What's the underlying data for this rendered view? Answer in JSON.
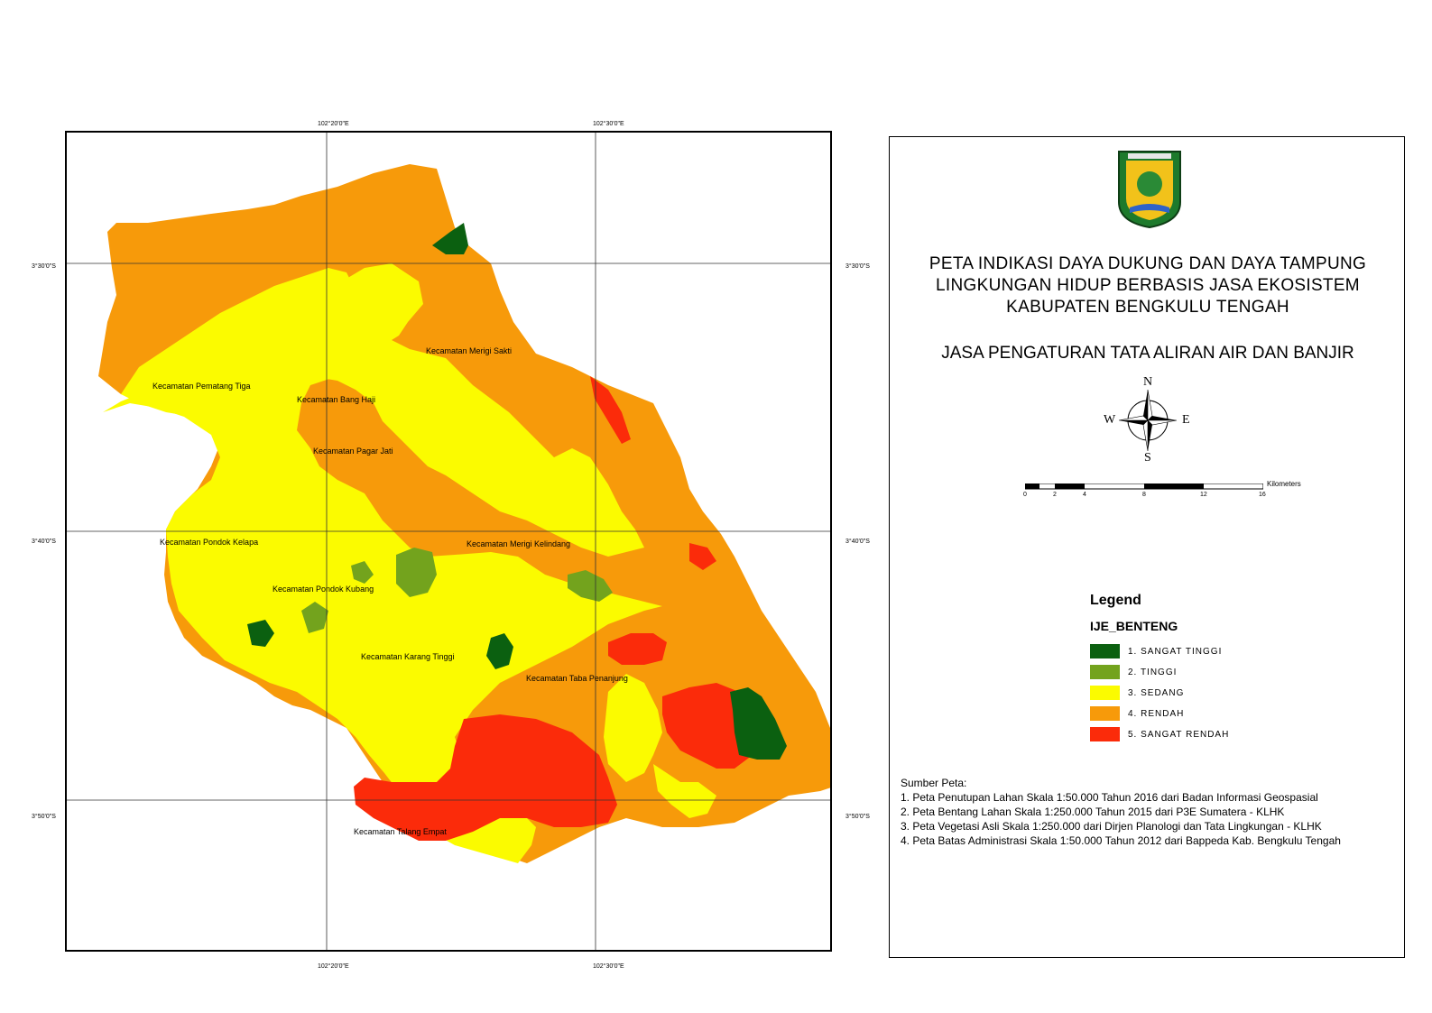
{
  "header": {
    "title_lines": [
      "PETA INDIKASI DAYA DUKUNG DAN DAYA TAMPUNG",
      "LINGKUNGAN HIDUP BERBASIS JASA EKOSISTEM",
      "KABUPATEN BENGKULU TENGAH"
    ],
    "subtitle": "JASA PENGATURAN TATA ALIRAN AIR DAN BANJIR"
  },
  "grid_labels": {
    "top_left": "102°20'0\"E",
    "top_right": "102°30'0\"E",
    "bottom_left": "102°20'0\"E",
    "bottom_right": "102°30'0\"E",
    "left_1": "3°30'0\"S",
    "left_2": "3°40'0\"S",
    "left_3": "3°50'0\"S",
    "right_1": "3°30'0\"S",
    "right_2": "3°40'0\"S",
    "right_3": "3°50'0\"S"
  },
  "districts": [
    "Kecamatan Merigi Sakti",
    "Kecamatan Pematang Tiga",
    "Kecamatan Bang Haji",
    "Kecamatan Pagar Jati",
    "Kecamatan Pondok  Kelapa",
    "Kecamatan Merigi Kelindang",
    "Kecamatan Pondok Kubang",
    "Kecamatan Karang Tinggi",
    "Kecamatan Taba Penanjung",
    "Kecamatan Talang Empat"
  ],
  "compass": {
    "n": "N",
    "s": "S",
    "e": "E",
    "w": "W"
  },
  "scale": {
    "unit": "Kilometers",
    "ticks": [
      "0",
      "2",
      "4",
      "8",
      "12",
      "16"
    ]
  },
  "legend": {
    "title": "Legend",
    "layer": "IJE_BENTENG",
    "items": [
      {
        "label": "1. SANGAT TINGGI",
        "color": "#0b6010"
      },
      {
        "label": "2. TINGGI",
        "color": "#73a31d"
      },
      {
        "label": "3. SEDANG",
        "color": "#fbfb00"
      },
      {
        "label": "4. RENDAH",
        "color": "#f79a0a"
      },
      {
        "label": "5. SANGAT RENDAH",
        "color": "#fb2b0a"
      }
    ]
  },
  "sources": {
    "heading": "Sumber Peta:",
    "lines": [
      "1. Peta Penutupan Lahan Skala 1:50.000 Tahun 2016 dari Badan Informasi Geospasial",
      "2. Peta Bentang Lahan Skala 1:250.000 Tahun 2015 dari  P3E Sumatera - KLHK",
      "3. Peta Vegetasi Asli Skala 1:250.000 dari Dirjen Planologi dan Tata Lingkungan - KLHK",
      "4. Peta Batas Administrasi Skala 1:50.000 Tahun 2012 dari Bappeda Kab. Bengkulu Tengah"
    ]
  },
  "colors": {
    "sangat_tinggi": "#0b6010",
    "tinggi": "#73a31d",
    "sedang": "#fbfb00",
    "rendah": "#f79a0a",
    "sangat_rendah": "#fb2b0a"
  }
}
